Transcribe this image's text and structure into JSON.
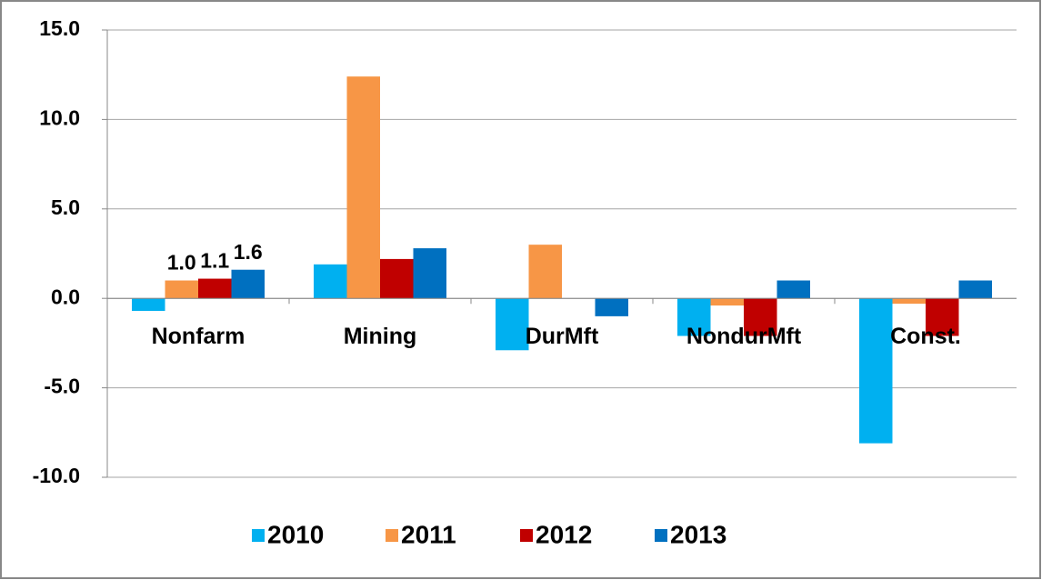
{
  "chart_data": {
    "type": "bar",
    "categories": [
      "Nonfarm",
      "Mining",
      "DurMft",
      "NondurMft",
      "Const."
    ],
    "series": [
      {
        "name": "2010",
        "color": "#00b0f0",
        "values": [
          -0.7,
          1.9,
          -2.9,
          -2.1,
          -8.1
        ]
      },
      {
        "name": "2011",
        "color": "#f79646",
        "values": [
          1.0,
          12.4,
          3.0,
          -0.4,
          -0.3
        ],
        "value_labels": [
          "1.0",
          null,
          null,
          null,
          null
        ]
      },
      {
        "name": "2012",
        "color": "#c00000",
        "values": [
          1.1,
          2.2,
          0,
          -2.1,
          -2.1
        ],
        "value_labels": [
          "1.1",
          null,
          null,
          null,
          null
        ]
      },
      {
        "name": "2013",
        "color": "#0070c0",
        "values": [
          1.6,
          2.8,
          -1.0,
          1.0,
          1.0
        ],
        "value_labels": [
          "1.6",
          null,
          null,
          null,
          null
        ]
      }
    ],
    "ylim": [
      -10,
      15
    ],
    "yticks": [
      {
        "value": -10,
        "label": "-10.0"
      },
      {
        "value": -5,
        "label": "-5.0"
      },
      {
        "value": 0,
        "label": "0.0"
      },
      {
        "value": 5,
        "label": "5.0"
      },
      {
        "value": 10,
        "label": "10.0"
      },
      {
        "value": 15,
        "label": "15.0"
      }
    ],
    "grid": true,
    "legend": "bottom"
  }
}
